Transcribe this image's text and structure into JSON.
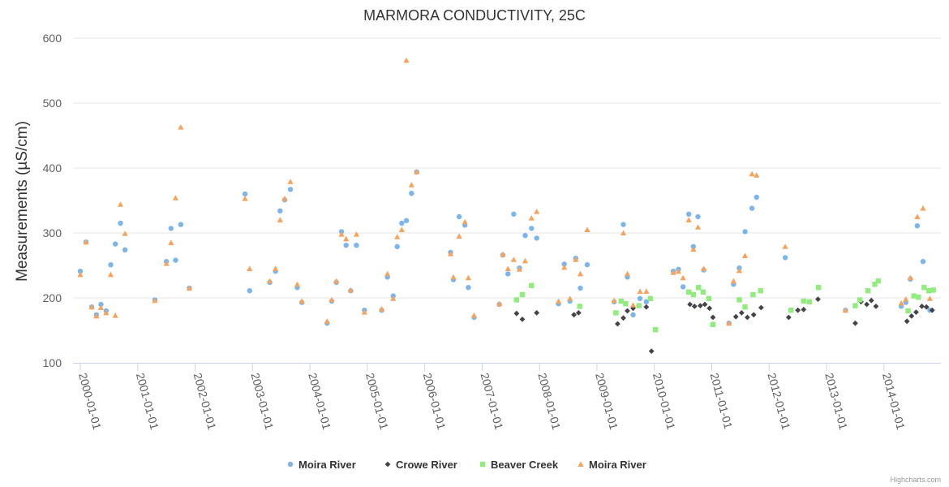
{
  "chart_data": {
    "type": "scatter",
    "title": "MARMORA CONDUCTIVITY, 25C",
    "ylabel": "Measurements (µS/cm)",
    "xlabel": "",
    "ylim": [
      100,
      600
    ],
    "yticks": [
      100,
      200,
      300,
      400,
      500,
      600
    ],
    "xlim": [
      2000.0,
      2014.85
    ],
    "xticks": [
      {
        "value": 2000,
        "label": "2000-01-01"
      },
      {
        "value": 2001,
        "label": "2001-01-01"
      },
      {
        "value": 2002,
        "label": "2002-01-01"
      },
      {
        "value": 2003,
        "label": "2003-01-01"
      },
      {
        "value": 2004,
        "label": "2004-01-01"
      },
      {
        "value": 2005,
        "label": "2005-01-01"
      },
      {
        "value": 2006,
        "label": "2006-01-01"
      },
      {
        "value": 2007,
        "label": "2007-01-01"
      },
      {
        "value": 2008,
        "label": "2008-01-01"
      },
      {
        "value": 2009,
        "label": "2009-01-01"
      },
      {
        "value": 2010,
        "label": "2010-01-01"
      },
      {
        "value": 2011,
        "label": "2011-01-01"
      },
      {
        "value": 2012,
        "label": "2012-01-01"
      },
      {
        "value": 2013,
        "label": "2013-01-01"
      },
      {
        "value": 2014,
        "label": "2014-01-01"
      }
    ],
    "legend_position": "bottom-center",
    "series": [
      {
        "name": "Moira River",
        "marker": "circle",
        "color": "#7cb5ec",
        "points": [
          [
            2000.0,
            241
          ],
          [
            2000.1,
            286
          ],
          [
            2000.2,
            186
          ],
          [
            2000.28,
            174
          ],
          [
            2000.36,
            190
          ],
          [
            2000.45,
            180
          ],
          [
            2000.53,
            251
          ],
          [
            2000.61,
            283
          ],
          [
            2000.7,
            315
          ],
          [
            2000.78,
            274
          ],
          [
            2001.3,
            197
          ],
          [
            2001.5,
            256
          ],
          [
            2001.58,
            307
          ],
          [
            2001.66,
            258
          ],
          [
            2001.75,
            313
          ],
          [
            2001.9,
            215
          ],
          [
            2002.87,
            360
          ],
          [
            2002.95,
            211
          ],
          [
            2003.3,
            224
          ],
          [
            2003.4,
            241
          ],
          [
            2003.48,
            334
          ],
          [
            2003.56,
            351
          ],
          [
            2003.66,
            367
          ],
          [
            2003.78,
            216
          ],
          [
            2003.86,
            193
          ],
          [
            2004.3,
            161
          ],
          [
            2004.38,
            195
          ],
          [
            2004.46,
            224
          ],
          [
            2004.55,
            302
          ],
          [
            2004.63,
            281
          ],
          [
            2004.71,
            211
          ],
          [
            2004.81,
            281
          ],
          [
            2004.95,
            181
          ],
          [
            2005.25,
            181
          ],
          [
            2005.35,
            232
          ],
          [
            2005.45,
            203
          ],
          [
            2005.52,
            279
          ],
          [
            2005.6,
            315
          ],
          [
            2005.68,
            319
          ],
          [
            2005.77,
            361
          ],
          [
            2005.86,
            394
          ],
          [
            2006.45,
            270
          ],
          [
            2006.5,
            228
          ],
          [
            2006.6,
            325
          ],
          [
            2006.7,
            312
          ],
          [
            2006.76,
            216
          ],
          [
            2006.86,
            170
          ],
          [
            2007.3,
            190
          ],
          [
            2007.36,
            266
          ],
          [
            2007.45,
            237
          ],
          [
            2007.55,
            329
          ],
          [
            2007.65,
            246
          ],
          [
            2007.75,
            296
          ],
          [
            2007.86,
            307
          ],
          [
            2007.95,
            292
          ],
          [
            2008.33,
            191
          ],
          [
            2008.43,
            252
          ],
          [
            2008.53,
            195
          ],
          [
            2008.63,
            261
          ],
          [
            2008.71,
            215
          ],
          [
            2008.83,
            251
          ],
          [
            2009.3,
            194
          ],
          [
            2009.46,
            313
          ],
          [
            2009.53,
            232
          ],
          [
            2009.63,
            174
          ],
          [
            2009.75,
            199
          ],
          [
            2009.86,
            194
          ],
          [
            2010.33,
            241
          ],
          [
            2010.42,
            244
          ],
          [
            2010.5,
            217
          ],
          [
            2010.6,
            329
          ],
          [
            2010.68,
            279
          ],
          [
            2010.76,
            325
          ],
          [
            2010.86,
            243
          ],
          [
            2011.3,
            161
          ],
          [
            2011.38,
            221
          ],
          [
            2011.48,
            246
          ],
          [
            2011.58,
            302
          ],
          [
            2011.7,
            338
          ],
          [
            2011.78,
            355
          ],
          [
            2012.28,
            262
          ],
          [
            2013.33,
            181
          ],
          [
            2014.3,
            187
          ],
          [
            2014.38,
            193
          ],
          [
            2014.46,
            229
          ],
          [
            2014.58,
            311
          ],
          [
            2014.68,
            256
          ],
          [
            2014.8,
            181
          ]
        ]
      },
      {
        "name": "Crowe River",
        "marker": "diamond",
        "color": "#434348",
        "points": [
          [
            2007.6,
            176
          ],
          [
            2007.7,
            167
          ],
          [
            2007.95,
            177
          ],
          [
            2008.6,
            174
          ],
          [
            2008.68,
            177
          ],
          [
            2009.36,
            160
          ],
          [
            2009.46,
            169
          ],
          [
            2009.53,
            180
          ],
          [
            2009.63,
            184
          ],
          [
            2009.73,
            188
          ],
          [
            2009.86,
            186
          ],
          [
            2009.95,
            118
          ],
          [
            2010.62,
            190
          ],
          [
            2010.7,
            187
          ],
          [
            2010.8,
            188
          ],
          [
            2010.88,
            190
          ],
          [
            2010.96,
            184
          ],
          [
            2011.02,
            170
          ],
          [
            2011.42,
            171
          ],
          [
            2011.52,
            177
          ],
          [
            2011.62,
            170
          ],
          [
            2011.73,
            174
          ],
          [
            2011.86,
            185
          ],
          [
            2012.34,
            170
          ],
          [
            2012.5,
            181
          ],
          [
            2012.6,
            182
          ],
          [
            2012.85,
            198
          ],
          [
            2013.5,
            161
          ],
          [
            2013.6,
            194
          ],
          [
            2013.7,
            190
          ],
          [
            2013.78,
            196
          ],
          [
            2013.86,
            187
          ],
          [
            2014.4,
            164
          ],
          [
            2014.48,
            172
          ],
          [
            2014.56,
            178
          ],
          [
            2014.66,
            187
          ],
          [
            2014.74,
            186
          ],
          [
            2014.84,
            181
          ]
        ]
      },
      {
        "name": "Beaver Creek",
        "marker": "square",
        "color": "#90ed7d",
        "points": [
          [
            2007.6,
            197
          ],
          [
            2007.7,
            205
          ],
          [
            2007.86,
            219
          ],
          [
            2008.7,
            187
          ],
          [
            2009.33,
            177
          ],
          [
            2009.42,
            195
          ],
          [
            2009.5,
            191
          ],
          [
            2009.73,
            188
          ],
          [
            2009.93,
            199
          ],
          [
            2010.02,
            151
          ],
          [
            2010.6,
            209
          ],
          [
            2010.68,
            205
          ],
          [
            2010.77,
            216
          ],
          [
            2010.85,
            209
          ],
          [
            2010.95,
            199
          ],
          [
            2011.02,
            159
          ],
          [
            2011.48,
            197
          ],
          [
            2011.58,
            186
          ],
          [
            2011.72,
            205
          ],
          [
            2011.85,
            211
          ],
          [
            2012.38,
            181
          ],
          [
            2012.6,
            195
          ],
          [
            2012.7,
            194
          ],
          [
            2012.86,
            216
          ],
          [
            2013.5,
            188
          ],
          [
            2013.58,
            197
          ],
          [
            2013.72,
            211
          ],
          [
            2013.84,
            221
          ],
          [
            2013.9,
            226
          ],
          [
            2014.42,
            180
          ],
          [
            2014.52,
            203
          ],
          [
            2014.6,
            201
          ],
          [
            2014.7,
            216
          ],
          [
            2014.78,
            211
          ],
          [
            2014.86,
            212
          ]
        ]
      },
      {
        "name": "Moira River",
        "marker": "triangle",
        "color": "#f7a35c",
        "points": [
          [
            2000.0,
            236
          ],
          [
            2000.1,
            286
          ],
          [
            2000.2,
            186
          ],
          [
            2000.28,
            172
          ],
          [
            2000.36,
            185
          ],
          [
            2000.45,
            177
          ],
          [
            2000.53,
            236
          ],
          [
            2000.61,
            173
          ],
          [
            2000.7,
            344
          ],
          [
            2000.78,
            299
          ],
          [
            2001.3,
            196
          ],
          [
            2001.5,
            253
          ],
          [
            2001.58,
            285
          ],
          [
            2001.66,
            354
          ],
          [
            2001.75,
            463
          ],
          [
            2001.9,
            215
          ],
          [
            2002.87,
            353
          ],
          [
            2002.95,
            245
          ],
          [
            2003.3,
            226
          ],
          [
            2003.4,
            245
          ],
          [
            2003.48,
            320
          ],
          [
            2003.56,
            353
          ],
          [
            2003.66,
            379
          ],
          [
            2003.78,
            221
          ],
          [
            2003.86,
            195
          ],
          [
            2004.3,
            164
          ],
          [
            2004.38,
            197
          ],
          [
            2004.46,
            226
          ],
          [
            2004.55,
            298
          ],
          [
            2004.63,
            291
          ],
          [
            2004.71,
            212
          ],
          [
            2004.81,
            298
          ],
          [
            2004.95,
            178
          ],
          [
            2005.25,
            183
          ],
          [
            2005.35,
            237
          ],
          [
            2005.45,
            199
          ],
          [
            2005.52,
            294
          ],
          [
            2005.6,
            305
          ],
          [
            2005.68,
            566
          ],
          [
            2005.77,
            374
          ],
          [
            2005.86,
            394
          ],
          [
            2006.45,
            268
          ],
          [
            2006.5,
            232
          ],
          [
            2006.6,
            295
          ],
          [
            2006.7,
            317
          ],
          [
            2006.76,
            231
          ],
          [
            2006.86,
            173
          ],
          [
            2007.3,
            191
          ],
          [
            2007.36,
            267
          ],
          [
            2007.45,
            245
          ],
          [
            2007.55,
            259
          ],
          [
            2007.65,
            244
          ],
          [
            2007.75,
            257
          ],
          [
            2007.86,
            323
          ],
          [
            2007.95,
            333
          ],
          [
            2008.33,
            195
          ],
          [
            2008.43,
            247
          ],
          [
            2008.53,
            199
          ],
          [
            2008.63,
            259
          ],
          [
            2008.71,
            237
          ],
          [
            2008.83,
            305
          ],
          [
            2009.3,
            196
          ],
          [
            2009.46,
            300
          ],
          [
            2009.53,
            237
          ],
          [
            2009.63,
            189
          ],
          [
            2009.75,
            210
          ],
          [
            2009.86,
            210
          ],
          [
            2010.33,
            239
          ],
          [
            2010.42,
            241
          ],
          [
            2010.5,
            231
          ],
          [
            2010.6,
            320
          ],
          [
            2010.68,
            275
          ],
          [
            2010.76,
            309
          ],
          [
            2010.86,
            245
          ],
          [
            2011.3,
            161
          ],
          [
            2011.38,
            226
          ],
          [
            2011.48,
            242
          ],
          [
            2011.58,
            265
          ],
          [
            2011.7,
            391
          ],
          [
            2011.78,
            389
          ],
          [
            2012.28,
            279
          ],
          [
            2013.33,
            181
          ],
          [
            2014.3,
            192
          ],
          [
            2014.38,
            198
          ],
          [
            2014.46,
            231
          ],
          [
            2014.58,
            325
          ],
          [
            2014.68,
            338
          ],
          [
            2014.8,
            199
          ]
        ]
      }
    ]
  },
  "credits": "Highcharts.com"
}
